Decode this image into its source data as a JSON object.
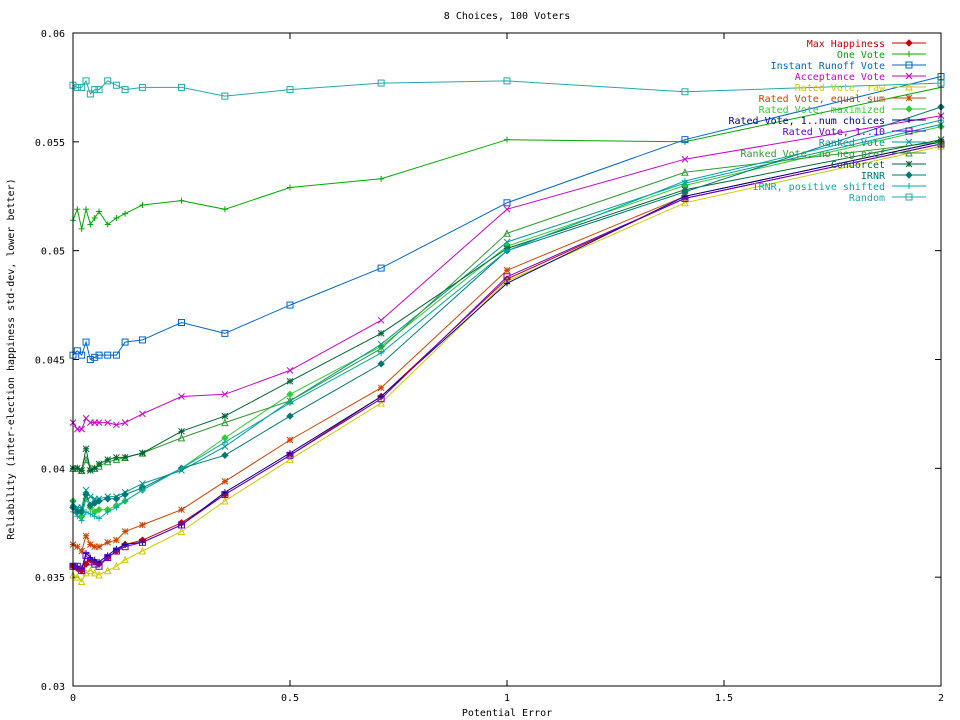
{
  "chart_data": {
    "type": "line",
    "title": "8 Choices, 100 Voters",
    "xlabel": "Potential Error",
    "ylabel": "Reliability (inter-election happiness std-dev, lower better)",
    "xlim": [
      0,
      2
    ],
    "ylim": [
      0.03,
      0.06
    ],
    "xticks": [
      0,
      0.5,
      1,
      1.5,
      2
    ],
    "xtick_labels": [
      "0",
      "0.5",
      "1",
      "1.5",
      "2"
    ],
    "yticks": [
      0.03,
      0.035,
      0.04,
      0.045,
      0.05,
      0.055,
      0.06
    ],
    "ytick_labels": [
      "0.03",
      "0.035",
      "0.04",
      "0.045",
      "0.05",
      "0.055",
      "0.06"
    ],
    "legend_position": "top-right",
    "x": [
      0,
      0.01,
      0.02,
      0.03,
      0.04,
      0.05,
      0.06,
      0.08,
      0.1,
      0.12,
      0.16,
      0.25,
      0.35,
      0.5,
      0.71,
      1,
      1.41,
      2
    ],
    "series": [
      {
        "name": "Max Happiness",
        "color": "#cc0000",
        "marker": "diamond",
        "values": [
          0.0355,
          0.0354,
          0.0353,
          0.0356,
          0.0358,
          0.0357,
          0.0356,
          0.0359,
          0.0362,
          0.0365,
          0.0367,
          0.0375,
          0.0388,
          0.0406,
          0.0433,
          0.0487,
          0.0524,
          0.0549
        ]
      },
      {
        "name": "One Vote",
        "color": "#00aa00",
        "marker": "plus",
        "values": [
          0.0514,
          0.0519,
          0.051,
          0.0519,
          0.0512,
          0.0515,
          0.0518,
          0.0512,
          0.0515,
          0.0517,
          0.0521,
          0.0523,
          0.0519,
          0.0529,
          0.0533,
          0.0551,
          0.055,
          0.0575
        ]
      },
      {
        "name": "Instant Runoff Vote",
        "color": "#0066cc",
        "marker": "square",
        "values": [
          0.0452,
          0.0454,
          0.0452,
          0.0458,
          0.045,
          0.0451,
          0.0452,
          0.0452,
          0.0452,
          0.0458,
          0.0459,
          0.0467,
          0.0462,
          0.0475,
          0.0492,
          0.0522,
          0.0551,
          0.058
        ]
      },
      {
        "name": "Acceptance Vote",
        "color": "#cc00cc",
        "marker": "x",
        "values": [
          0.0421,
          0.0418,
          0.0418,
          0.0423,
          0.0421,
          0.0421,
          0.0421,
          0.0421,
          0.042,
          0.0421,
          0.0425,
          0.0433,
          0.0434,
          0.0445,
          0.0468,
          0.0519,
          0.0542,
          0.0562
        ]
      },
      {
        "name": "Rated Vote, raw",
        "color": "#cccc00",
        "marker": "triangle",
        "values": [
          0.0351,
          0.035,
          0.0348,
          0.0352,
          0.0353,
          0.0352,
          0.0351,
          0.0353,
          0.0355,
          0.0358,
          0.0362,
          0.0371,
          0.0385,
          0.0404,
          0.043,
          0.0486,
          0.0522,
          0.0548
        ]
      },
      {
        "name": "Rated Vote, equal sum",
        "color": "#cc4400",
        "marker": "asterisk",
        "values": [
          0.0365,
          0.0364,
          0.0362,
          0.0369,
          0.0365,
          0.0364,
          0.0364,
          0.0366,
          0.0367,
          0.0371,
          0.0374,
          0.0381,
          0.0394,
          0.0413,
          0.0437,
          0.0491,
          0.0525,
          0.055
        ]
      },
      {
        "name": "Rated Vote, maximized",
        "color": "#33cc33",
        "marker": "diamond",
        "values": [
          0.0385,
          0.038,
          0.0378,
          0.0386,
          0.0382,
          0.038,
          0.0381,
          0.0381,
          0.0383,
          0.0385,
          0.039,
          0.04,
          0.0414,
          0.0434,
          0.0456,
          0.0502,
          0.053,
          0.0557
        ]
      },
      {
        "name": "Rated Vote, 1..num choices",
        "color": "#000099",
        "marker": "plus",
        "values": [
          0.0356,
          0.0355,
          0.0354,
          0.0361,
          0.0359,
          0.0358,
          0.0357,
          0.036,
          0.0363,
          0.0365,
          0.0366,
          0.0374,
          0.0389,
          0.0407,
          0.0433,
          0.0485,
          0.0525,
          0.055
        ]
      },
      {
        "name": "Rated Vote, 1..10",
        "color": "#6600cc",
        "marker": "square",
        "values": [
          0.0355,
          0.0355,
          0.0353,
          0.036,
          0.0357,
          0.0356,
          0.0355,
          0.0359,
          0.0362,
          0.0364,
          0.0366,
          0.0374,
          0.0388,
          0.0406,
          0.0432,
          0.0488,
          0.0524,
          0.0549
        ]
      },
      {
        "name": "Ranked Vote",
        "color": "#009999",
        "marker": "x",
        "values": [
          0.0384,
          0.0382,
          0.0382,
          0.039,
          0.0387,
          0.0386,
          0.0386,
          0.0387,
          0.0387,
          0.0389,
          0.0393,
          0.0399,
          0.041,
          0.0431,
          0.0457,
          0.0504,
          0.0531,
          0.0558
        ]
      },
      {
        "name": "Ranked Vote, no neg pref",
        "color": "#339933",
        "marker": "triangle",
        "values": [
          0.04,
          0.04,
          0.0399,
          0.0404,
          0.04,
          0.04,
          0.0401,
          0.0403,
          0.0404,
          0.0405,
          0.0407,
          0.0414,
          0.0421,
          0.0431,
          0.0455,
          0.0508,
          0.0536,
          0.055
        ]
      },
      {
        "name": "Condorcet",
        "color": "#006633",
        "marker": "asterisk",
        "values": [
          0.04,
          0.04,
          0.0399,
          0.0409,
          0.0399,
          0.04,
          0.0402,
          0.0404,
          0.0405,
          0.0405,
          0.0407,
          0.0417,
          0.0424,
          0.044,
          0.0462,
          0.0501,
          0.0528,
          0.0551
        ]
      },
      {
        "name": "IRNR",
        "color": "#007777",
        "marker": "diamond",
        "values": [
          0.0382,
          0.038,
          0.038,
          0.0388,
          0.0383,
          0.0384,
          0.0385,
          0.0386,
          0.0386,
          0.0388,
          0.0391,
          0.04,
          0.0406,
          0.0424,
          0.0448,
          0.05,
          0.0527,
          0.0566
        ]
      },
      {
        "name": "IRNR, positive shifted",
        "color": "#00aaaa",
        "marker": "plus",
        "values": [
          0.038,
          0.0378,
          0.0376,
          0.038,
          0.0379,
          0.0378,
          0.0377,
          0.038,
          0.0382,
          0.0385,
          0.039,
          0.04,
          0.0412,
          0.043,
          0.0453,
          0.05,
          0.0532,
          0.056
        ]
      },
      {
        "name": "Random",
        "color": "#22aaaa",
        "marker": "square",
        "values": [
          0.0576,
          0.0575,
          0.0575,
          0.0578,
          0.0572,
          0.0574,
          0.0574,
          0.0578,
          0.0576,
          0.0574,
          0.0575,
          0.0575,
          0.0571,
          0.0574,
          0.0577,
          0.0578,
          0.0573,
          0.0577
        ]
      }
    ]
  }
}
